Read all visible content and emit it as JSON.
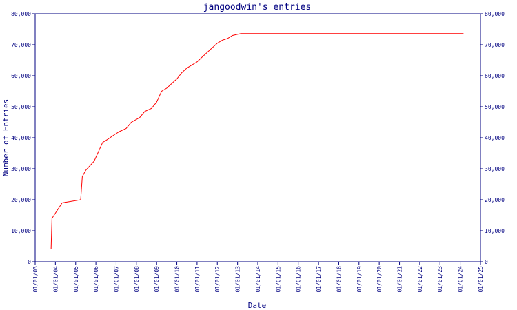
{
  "chart_data": {
    "type": "line",
    "title": "jangoodwin's entries",
    "xlabel": "Date",
    "ylabel": "Number of Entries",
    "xlim": [
      "2003-01-01",
      "2025-01-01"
    ],
    "ylim": [
      0,
      80000
    ],
    "y_ticks": [
      0,
      10000,
      20000,
      30000,
      40000,
      50000,
      60000,
      70000,
      80000
    ],
    "y_tick_labels": [
      "0",
      "10,000",
      "20,000",
      "30,000",
      "40,000",
      "50,000",
      "60,000",
      "70,000",
      "80,000"
    ],
    "x_ticks": [
      "2003-01-01",
      "2004-01-01",
      "2005-01-01",
      "2006-01-01",
      "2007-01-01",
      "2008-01-01",
      "2009-01-01",
      "2010-01-01",
      "2011-01-01",
      "2012-01-01",
      "2013-01-01",
      "2014-01-01",
      "2015-01-01",
      "2016-01-01",
      "2017-01-01",
      "2018-01-01",
      "2019-01-01",
      "2020-01-01",
      "2021-01-01",
      "2022-01-01",
      "2023-01-01",
      "2024-01-01",
      "2025-01-01"
    ],
    "x_tick_labels": [
      "01/01/03",
      "01/01/04",
      "01/01/05",
      "01/01/06",
      "01/01/07",
      "01/01/08",
      "01/01/09",
      "01/01/10",
      "01/01/11",
      "01/01/12",
      "01/01/13",
      "01/01/14",
      "01/01/15",
      "01/01/16",
      "01/01/17",
      "01/01/18",
      "01/01/19",
      "01/01/20",
      "01/01/21",
      "01/01/22",
      "01/01/23",
      "01/01/24",
      "01/01/25"
    ],
    "grid": false,
    "line_color": "#ff0000",
    "axis_color": "#000080",
    "series": [
      {
        "points": [
          [
            "2003-10-15",
            4000
          ],
          [
            "2003-11-01",
            14000
          ],
          [
            "2004-05-01",
            19000
          ],
          [
            "2005-04-01",
            20000
          ],
          [
            "2005-05-01",
            27500
          ],
          [
            "2005-07-01",
            29500
          ],
          [
            "2005-12-01",
            32500
          ],
          [
            "2006-03-01",
            36000
          ],
          [
            "2006-05-01",
            38500
          ],
          [
            "2006-08-01",
            39500
          ],
          [
            "2006-12-01",
            41000
          ],
          [
            "2007-03-01",
            42000
          ],
          [
            "2007-07-01",
            43000
          ],
          [
            "2007-10-01",
            45000
          ],
          [
            "2008-03-01",
            46500
          ],
          [
            "2008-06-01",
            48500
          ],
          [
            "2008-10-01",
            49500
          ],
          [
            "2009-01-01",
            51500
          ],
          [
            "2009-04-01",
            55000
          ],
          [
            "2009-07-01",
            56000
          ],
          [
            "2009-10-01",
            57500
          ],
          [
            "2010-01-01",
            59000
          ],
          [
            "2010-04-01",
            61000
          ],
          [
            "2010-07-01",
            62500
          ],
          [
            "2010-10-01",
            63500
          ],
          [
            "2011-01-01",
            64500
          ],
          [
            "2011-04-01",
            66000
          ],
          [
            "2011-07-01",
            67500
          ],
          [
            "2011-10-01",
            69000
          ],
          [
            "2012-01-01",
            70500
          ],
          [
            "2012-04-01",
            71500
          ],
          [
            "2012-07-01",
            72000
          ],
          [
            "2012-10-01",
            73000
          ],
          [
            "2013-03-01",
            73600
          ],
          [
            "2024-03-01",
            73600
          ]
        ]
      }
    ]
  }
}
